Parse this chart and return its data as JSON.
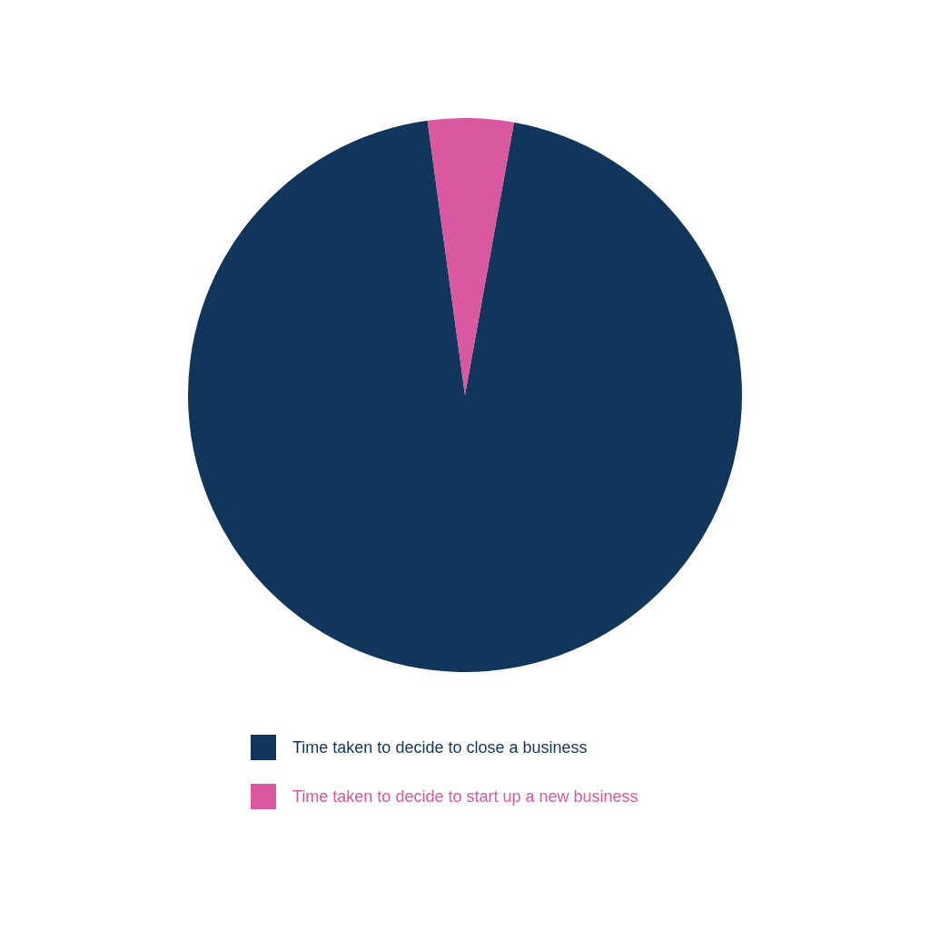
{
  "chart_data": {
    "type": "pie",
    "categories": [
      "Time taken to decide to close a business",
      "Time taken to decide to start up a new business"
    ],
    "values": [
      95,
      5
    ],
    "colors": [
      "#12355b",
      "#d9589f"
    ],
    "legend": "bottom"
  }
}
